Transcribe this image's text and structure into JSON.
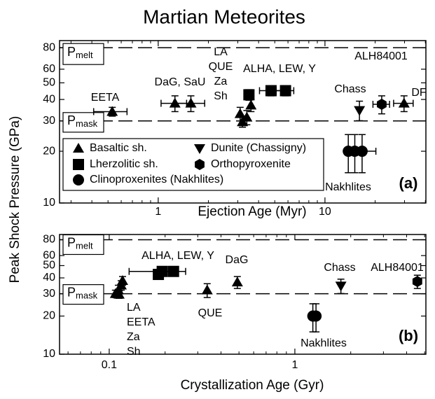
{
  "chart_data": [
    {
      "type": "scatter",
      "title": "Martian Meteorites",
      "ylabel": "Peak Shock Pressure (GPa)",
      "xlabel": "Ejection Age (Myr)",
      "log_x": true,
      "log_y": true,
      "xlim": [
        0.256,
        40.3
      ],
      "ylim": [
        10,
        88
      ],
      "xticks": [
        1,
        10
      ],
      "xminor": [
        0.3,
        0.4,
        0.5,
        0.6,
        0.7,
        0.8,
        0.9,
        2,
        3,
        4,
        5,
        6,
        7,
        8,
        9,
        20,
        30,
        40
      ],
      "yticks": [
        10,
        20,
        30,
        40,
        50,
        60,
        80
      ],
      "hlines": [
        {
          "value": 80,
          "label": {
            "text": "P",
            "sub": "melt"
          }
        },
        {
          "value": 30,
          "label": {
            "text": "P",
            "sub": "mask"
          }
        }
      ],
      "series": [
        {
          "name": "Basaltic sh.",
          "marker": "triangle",
          "color": "#000000",
          "x": [
            0.53,
            1.26,
            1.57,
            3.1,
            3.2,
            3.4,
            3.6,
            29.8
          ],
          "values": [
            34,
            38,
            38,
            33,
            29.6,
            31.5,
            37,
            38
          ],
          "xerr": [
            0.12,
            0.22,
            0.33,
            null,
            null,
            null,
            null,
            4
          ],
          "yerr": [
            2,
            4,
            4,
            3,
            2,
            3,
            3,
            4
          ]
        },
        {
          "name": "Lherzolitic sh.",
          "marker": "square",
          "color": "#000000",
          "x": [
            3.5,
            4.75,
            5.8
          ],
          "values": [
            42.6,
            45,
            45
          ],
          "xerr": [
            null,
            0.7,
            0.7
          ],
          "yerr": [
            3,
            3,
            3
          ]
        },
        {
          "name": "Dunite (Chassigny)",
          "marker": "triangle-down",
          "color": "#000000",
          "x": [
            16.1
          ],
          "values": [
            34.6
          ],
          "xerr": [
            null
          ],
          "yerr": [
            4.5
          ]
        },
        {
          "name": "Orthopyroxenite",
          "marker": "hexagon",
          "color": "#000000",
          "x": [
            21.9
          ],
          "values": [
            37.5
          ],
          "xerr": [
            2.5
          ],
          "yerr": [
            4.5
          ]
        },
        {
          "name": "Clinoproxenites (Nakhlites)",
          "marker": "circle",
          "color": "#000000",
          "x": [
            13.8,
            15.1,
            16.7
          ],
          "values": [
            20,
            20,
            20
          ],
          "xerr": [
            null,
            null,
            3.5
          ],
          "yerr": [
            5,
            5,
            5
          ]
        }
      ],
      "annotations": [
        [
          "EETA"
        ],
        [
          "DaG, SaU"
        ],
        [
          "LA",
          "QUE",
          "Za",
          "Sh"
        ],
        [
          "ALHA, LEW, Y"
        ],
        [
          "ALH84001"
        ],
        [
          "Chass"
        ],
        [
          "DF"
        ],
        [
          "Nakhlites"
        ]
      ],
      "panel_label": "(a)"
    },
    {
      "type": "scatter",
      "xlabel": "Crystallization Age (Gyr)",
      "log_x": true,
      "log_y": true,
      "xlim": [
        0.054,
        5.08
      ],
      "ylim": [
        10,
        88
      ],
      "xticks": [
        0.1,
        1
      ],
      "xminor": [
        0.06,
        0.07,
        0.08,
        0.09,
        0.2,
        0.3,
        0.4,
        0.5,
        0.6,
        0.7,
        0.8,
        0.9,
        2,
        3,
        4,
        5
      ],
      "yticks": [
        10,
        20,
        30,
        40,
        50,
        60,
        80
      ],
      "hlines": [
        {
          "value": 80,
          "label": {
            "text": "P",
            "sub": "melt"
          }
        },
        {
          "value": 30,
          "label": {
            "text": "P",
            "sub": "mask"
          }
        }
      ],
      "series": [
        {
          "marker": "triangle",
          "color": "#000000",
          "x": [
            0.108,
            0.112,
            0.116,
            0.118,
            0.113,
            0.337,
            0.49
          ],
          "values": [
            30,
            32,
            35,
            38,
            29.6,
            32,
            37
          ],
          "xerr": [
            null,
            null,
            null,
            null,
            null,
            null,
            null
          ],
          "yerr": [
            2,
            3,
            3,
            3,
            2,
            4,
            4
          ]
        },
        {
          "marker": "square",
          "color": "#000000",
          "x": [
            0.184,
            0.193,
            0.222
          ],
          "values": [
            42.6,
            45,
            45
          ],
          "xerr": [
            null,
            0.065,
            null
          ],
          "yerr": [
            3,
            3,
            3
          ]
        },
        {
          "marker": "triangle-down",
          "color": "#000000",
          "x": [
            1.77
          ],
          "values": [
            34.6
          ],
          "xerr": [
            null
          ],
          "yerr": [
            4.5
          ]
        },
        {
          "marker": "hexagon",
          "color": "#000000",
          "x": [
            4.57
          ],
          "values": [
            37.5
          ],
          "xerr": [
            null
          ],
          "yerr": [
            4.5
          ]
        },
        {
          "marker": "circle",
          "color": "#000000",
          "x": [
            1.25,
            1.3
          ],
          "values": [
            20,
            20
          ],
          "xerr": [
            null,
            null
          ],
          "yerr": [
            5,
            5
          ]
        }
      ],
      "annotations": [
        [
          "ALHA, LEW, Y"
        ],
        [
          "DaG"
        ],
        [
          "Chass"
        ],
        [
          "ALH84001"
        ],
        [
          "LA",
          "EETA",
          "Za",
          "Sh"
        ],
        [
          "QUE"
        ],
        [
          "Nakhlites"
        ]
      ],
      "panel_label": "(b)"
    }
  ]
}
